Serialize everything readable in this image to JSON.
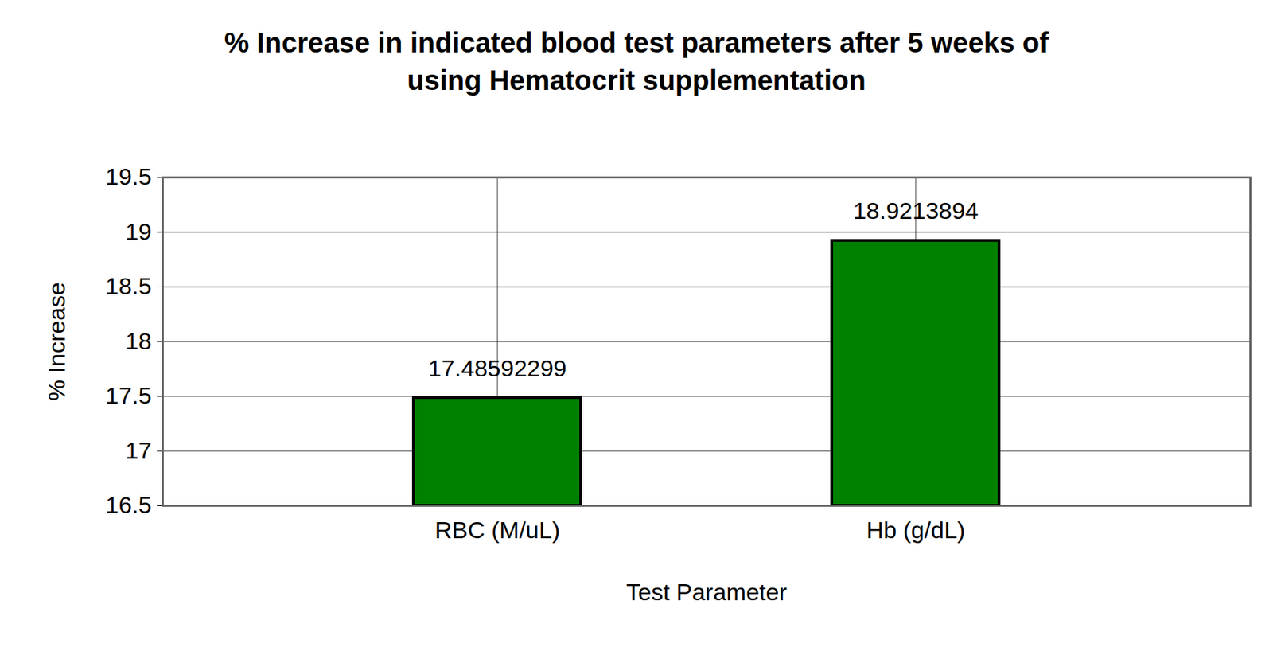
{
  "chart_data": {
    "type": "bar",
    "title": "% Increase in indicated blood test parameters after 5 weeks of\nusing Hematocrit supplementation",
    "x_label": "Test Parameter",
    "y_label": "% Increase",
    "categories": [
      "RBC (M/uL)",
      "Hb (g/dL)"
    ],
    "values": [
      17.48592299,
      18.9213894
    ],
    "color": "#008000",
    "ylim": [
      16.5,
      19.5
    ],
    "yticks": [
      16.5,
      17,
      17.5,
      18,
      18.5,
      19,
      19.5
    ],
    "grid": true,
    "data_labels": true
  }
}
